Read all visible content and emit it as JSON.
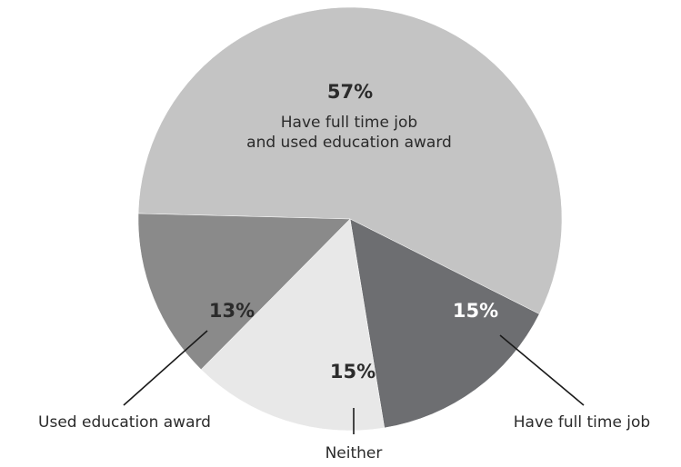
{
  "chart_data": {
    "type": "pie",
    "start_angle_deg": 0,
    "direction": "clockwise",
    "slices": [
      {
        "label": "Have full time job and used education award",
        "label_lines": [
          "Have full time job",
          "and used education award"
        ],
        "value": 57,
        "value_label": "57%",
        "color": "#c4c4c4",
        "text_color": "#2b2b2b"
      },
      {
        "label": "Have full time job",
        "label_lines": [
          "Have full time job"
        ],
        "value": 15,
        "value_label": "15%",
        "color": "#6d6e71",
        "text_color": "#ffffff"
      },
      {
        "label": "Neither",
        "label_lines": [
          "Neither"
        ],
        "value": 15,
        "value_label": "15%",
        "color": "#e8e8e8",
        "text_color": "#2b2b2b"
      },
      {
        "label": "Used education award",
        "label_lines": [
          "Used education award"
        ],
        "value": 13,
        "value_label": "13%",
        "color": "#8a8a8a",
        "text_color": "#2b2b2b"
      }
    ]
  }
}
